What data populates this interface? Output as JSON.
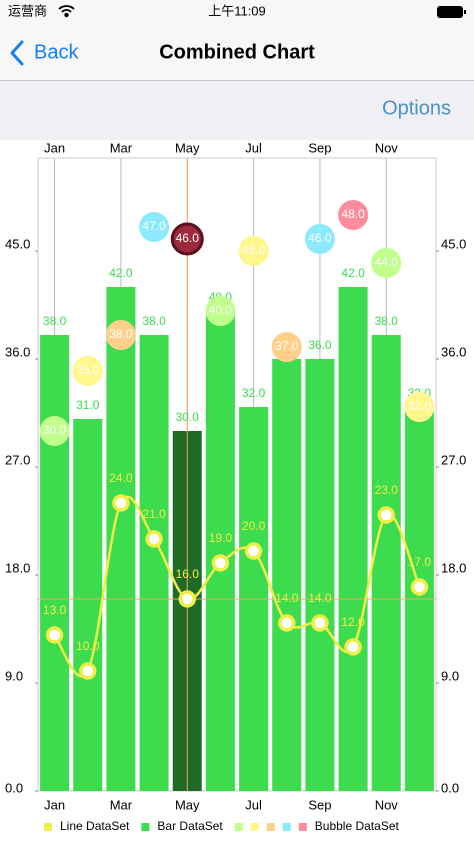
{
  "status_bar": {
    "carrier": "运营商",
    "time": "上午11:09"
  },
  "nav": {
    "back": "Back",
    "title": "Combined Chart",
    "options": "Options"
  },
  "chart_data": {
    "type": "combined",
    "categories": [
      "Jan",
      null,
      "Mar",
      null,
      "May",
      null,
      "Jul",
      null,
      "Sep",
      null,
      "Nov",
      null
    ],
    "ylim": [
      0,
      52.75
    ],
    "yticks": [
      {
        "value": 0,
        "label": "0.0"
      },
      {
        "value": 9,
        "label": "9.0"
      },
      {
        "value": 18,
        "label": "18.0"
      },
      {
        "value": 27,
        "label": "27.0"
      },
      {
        "value": 36,
        "label": "36.0"
      },
      {
        "value": 45,
        "label": "45.0"
      }
    ],
    "highlight_index": 4,
    "highlight_color": "#f4a460",
    "series": [
      {
        "name": "Line DataSet",
        "type": "line",
        "color": "#f0ee46",
        "values": [
          13,
          10,
          24,
          21,
          16,
          19,
          20,
          14,
          14,
          12,
          23,
          17
        ],
        "value_labels": [
          "13.0",
          "10.0",
          "24.0",
          "21.0",
          "16.0",
          "19.0",
          "20.0",
          "14.0",
          "14.0",
          "12.0",
          "23.0",
          "17.0"
        ]
      },
      {
        "name": "Bar DataSet",
        "type": "bar",
        "color": "#3cdc4e",
        "highlight_color": "#1f6a27",
        "values": [
          38,
          31,
          42,
          38,
          30,
          40,
          32,
          36,
          36,
          42,
          38,
          32
        ],
        "value_labels": [
          "38.0",
          "31.0",
          "42.0",
          "38.0",
          "30.0",
          "40.0",
          "32.0",
          "36.0",
          "36.0",
          "42.0",
          "38.0",
          "32.0"
        ]
      },
      {
        "name": "Bubble DataSet",
        "type": "bubble",
        "colors": [
          "#c0ff8c",
          "#fff78c",
          "#ffd08c",
          "#8ceaff",
          "#ff8c9d"
        ],
        "values": [
          30,
          35,
          38,
          47,
          46,
          40,
          45,
          37,
          46,
          48,
          44,
          32
        ],
        "value_labels": [
          "30.0",
          "35.0",
          "38.0",
          "47.0",
          "46.0",
          "40.0",
          "45.0",
          "37.0",
          "46.0",
          "48.0",
          "44.0",
          "32.0"
        ]
      }
    ]
  }
}
